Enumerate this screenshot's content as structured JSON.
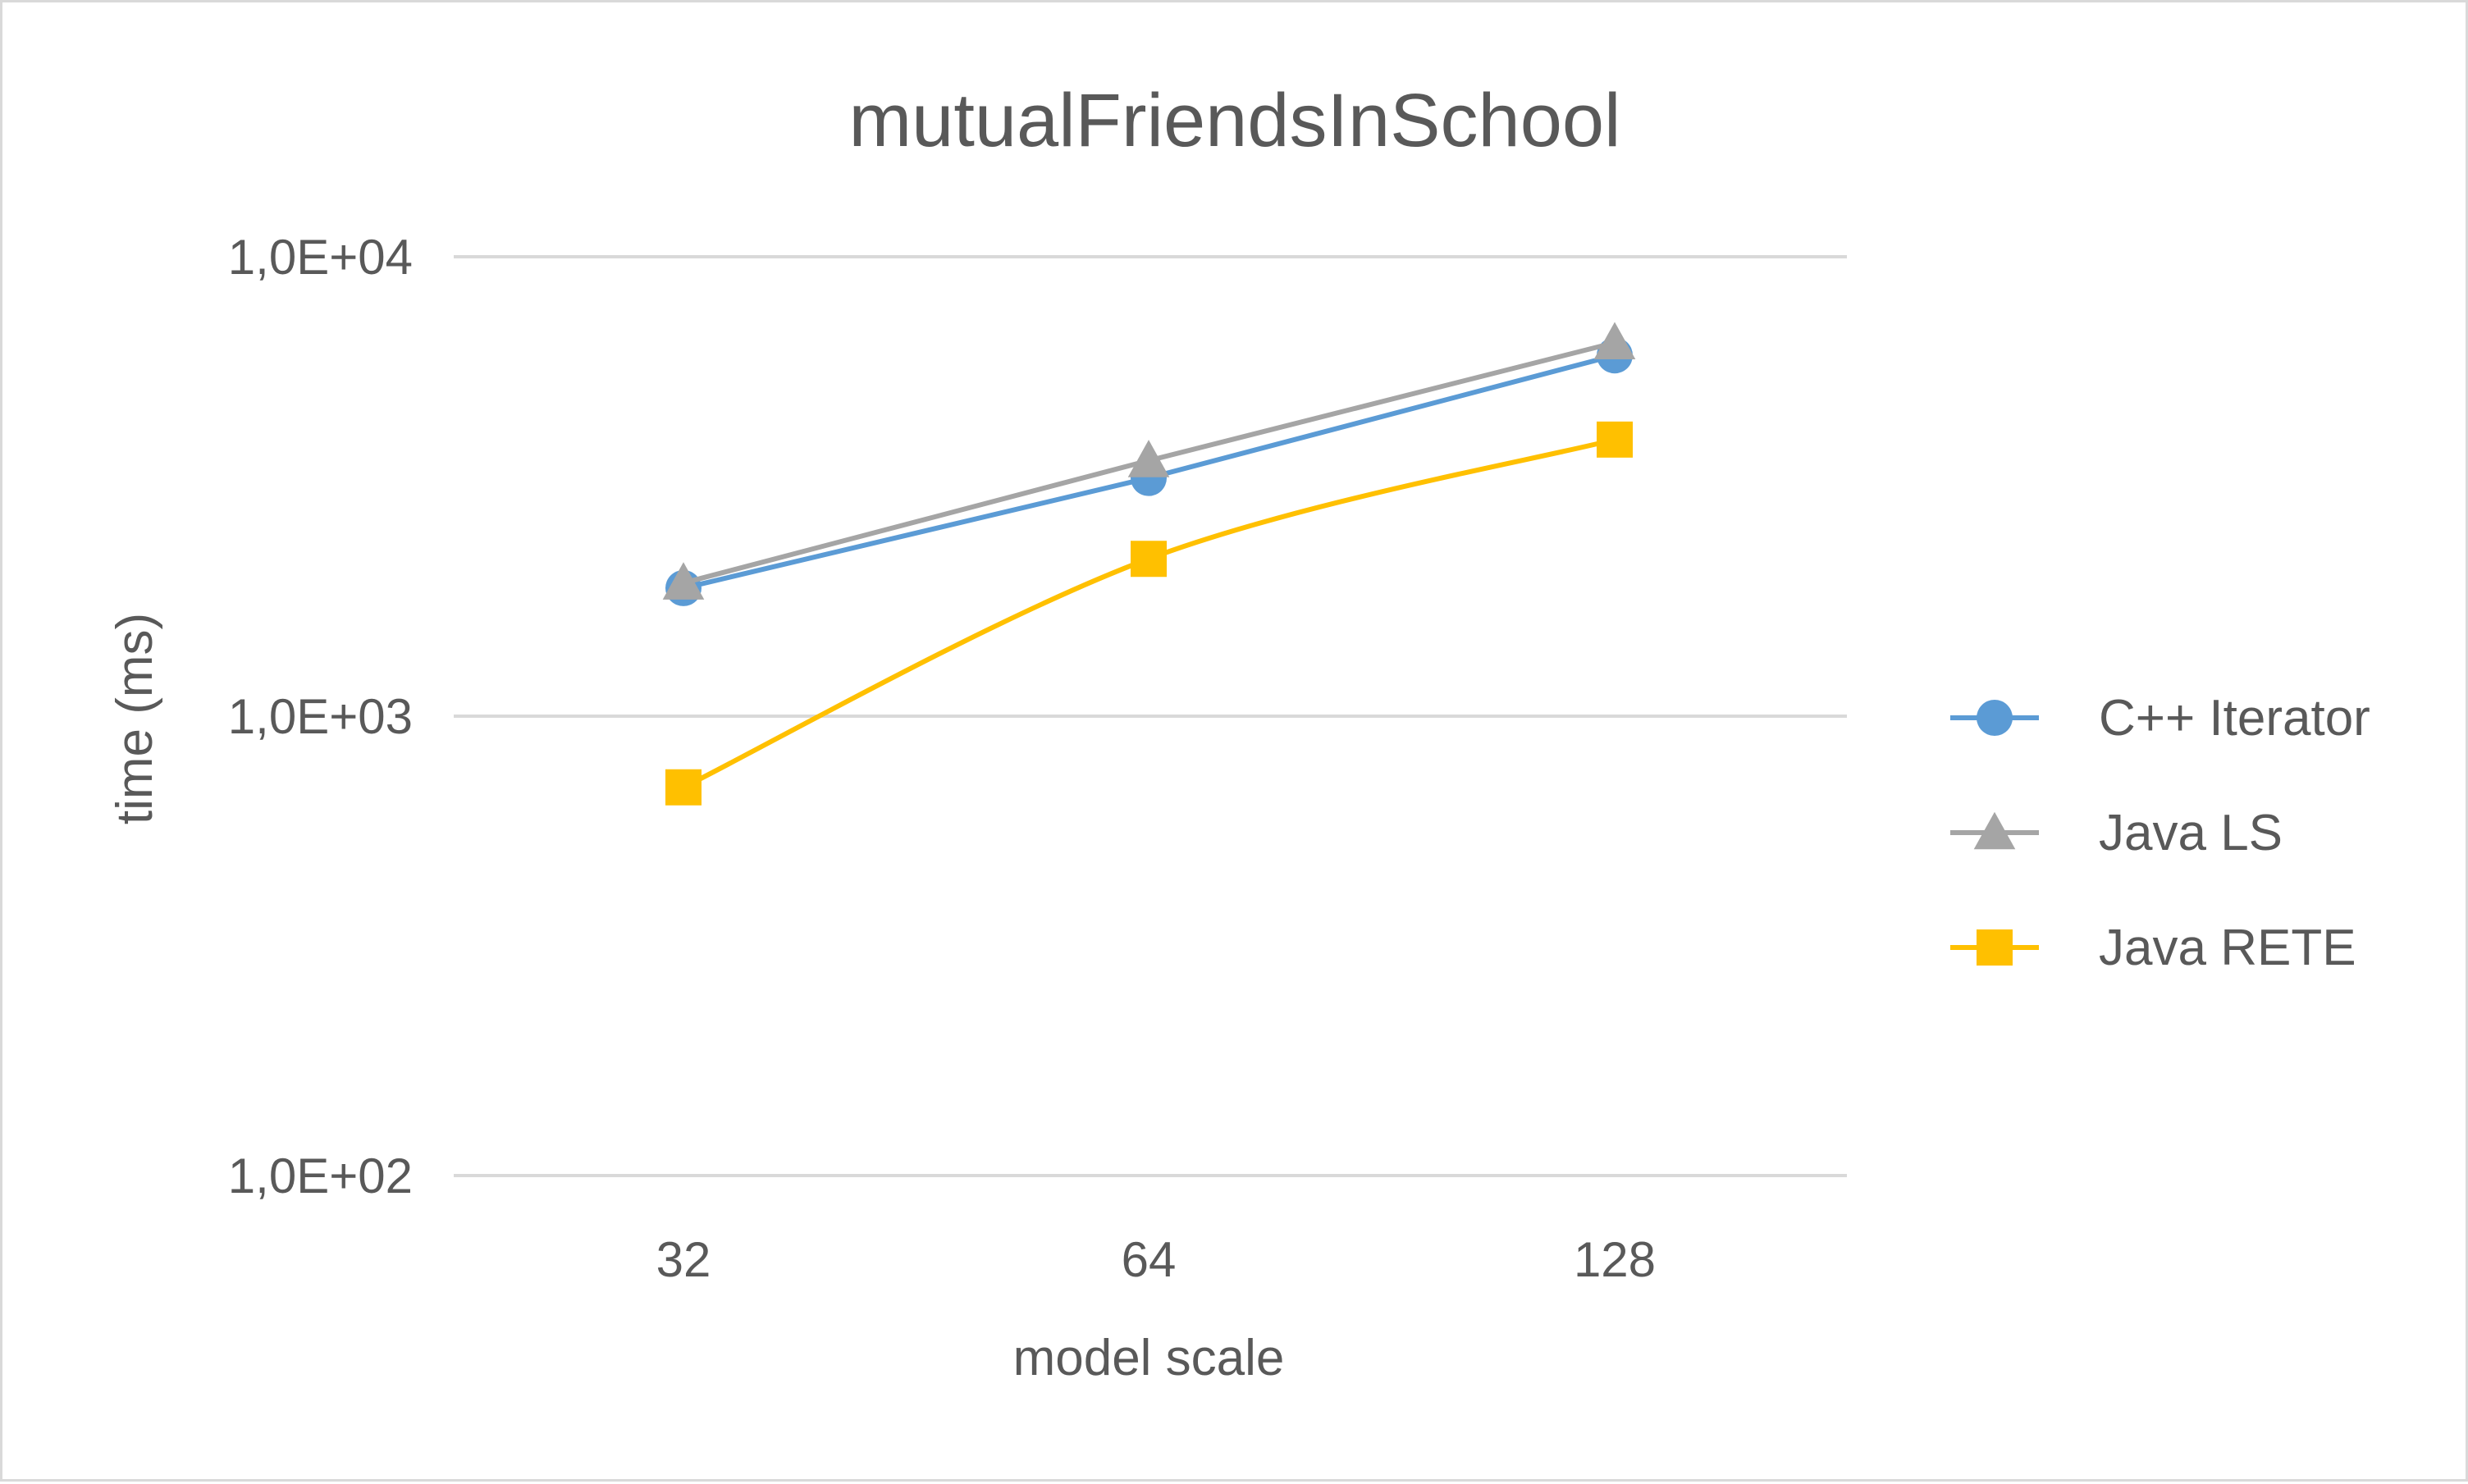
{
  "chart_data": {
    "type": "line",
    "title": "mutualFriendsInSchool",
    "xlabel": "model scale",
    "ylabel": "time (ms)",
    "categories": [
      "32",
      "64",
      "128"
    ],
    "y_scale": "log",
    "ylim": [
      100,
      10000
    ],
    "y_ticks": [
      {
        "value": 10000,
        "label": "1,0E+04"
      },
      {
        "value": 1000,
        "label": "1,0E+03"
      },
      {
        "value": 100,
        "label": "1,0E+02"
      }
    ],
    "grid": true,
    "legend_position": "right",
    "series": [
      {
        "name": "C++ Iterator",
        "values": [
          1900,
          3300,
          6100
        ],
        "color": "#5b9bd5",
        "marker": "circle",
        "smooth": false
      },
      {
        "name": "Java LS",
        "values": [
          1950,
          3600,
          6500
        ],
        "color": "#a5a5a5",
        "marker": "triangle",
        "smooth": false
      },
      {
        "name": "Java RETE",
        "values": [
          700,
          2200,
          4000
        ],
        "color": "#ffc000",
        "marker": "square",
        "smooth": true
      }
    ]
  }
}
